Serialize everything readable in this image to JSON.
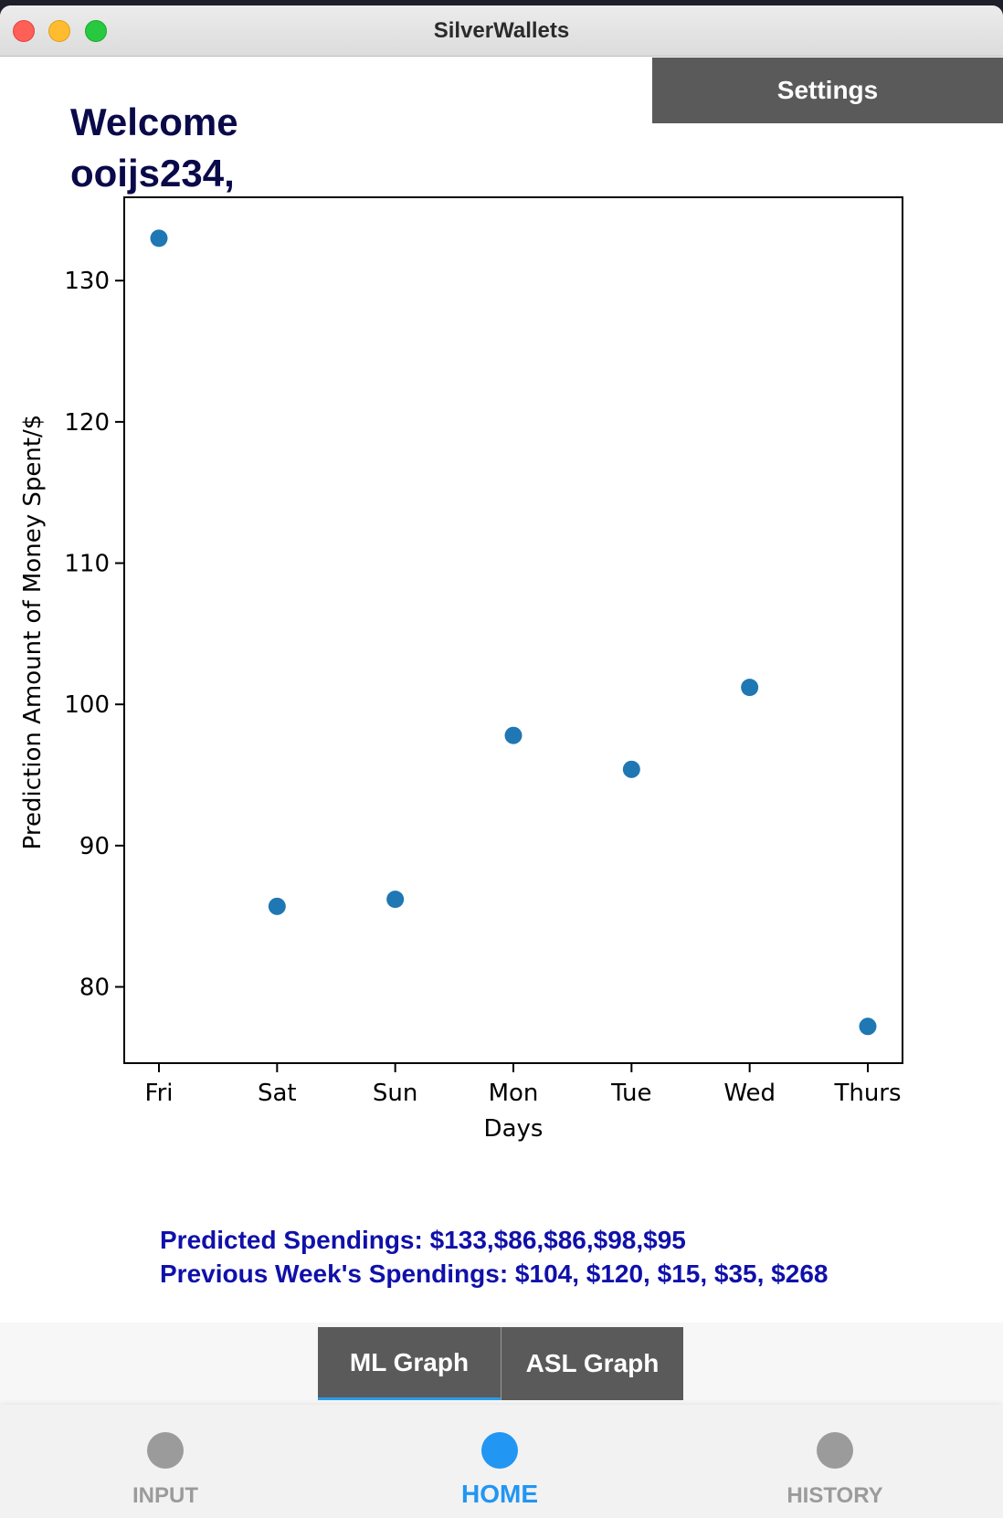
{
  "window": {
    "title": "SilverWallets"
  },
  "header": {
    "settings_label": "Settings",
    "welcome_line1": "Welcome",
    "welcome_line2": "ooijs234,"
  },
  "chart_data": {
    "type": "scatter",
    "categories": [
      "Fri",
      "Sat",
      "Sun",
      "Mon",
      "Tue",
      "Wed",
      "Thurs"
    ],
    "values": [
      133,
      85.7,
      86.2,
      97.8,
      95.4,
      101.2,
      77.2
    ],
    "xlabel": "Days",
    "ylabel": "Prediction Amount of Money Spent/$",
    "yticks": [
      80,
      90,
      100,
      110,
      120,
      130
    ],
    "ylim": [
      74.6,
      135.9
    ],
    "grid": false,
    "color": "#1f77b4"
  },
  "info": {
    "predicted": "Predicted Spendings: $133,$86,$86,$98,$95",
    "previous": "Previous Week's Spendings: $104, $120, $15, $35, $268"
  },
  "tabs": {
    "ml": "ML Graph",
    "asl": "ASL Graph"
  },
  "nav": {
    "input": "INPUT",
    "home": "HOME",
    "history": "HISTORY"
  },
  "colors": {
    "accent": "#2196f3",
    "dark_button": "#5a5a5a",
    "info_text": "#1010aa",
    "welcome_text": "#0a0a4a"
  }
}
